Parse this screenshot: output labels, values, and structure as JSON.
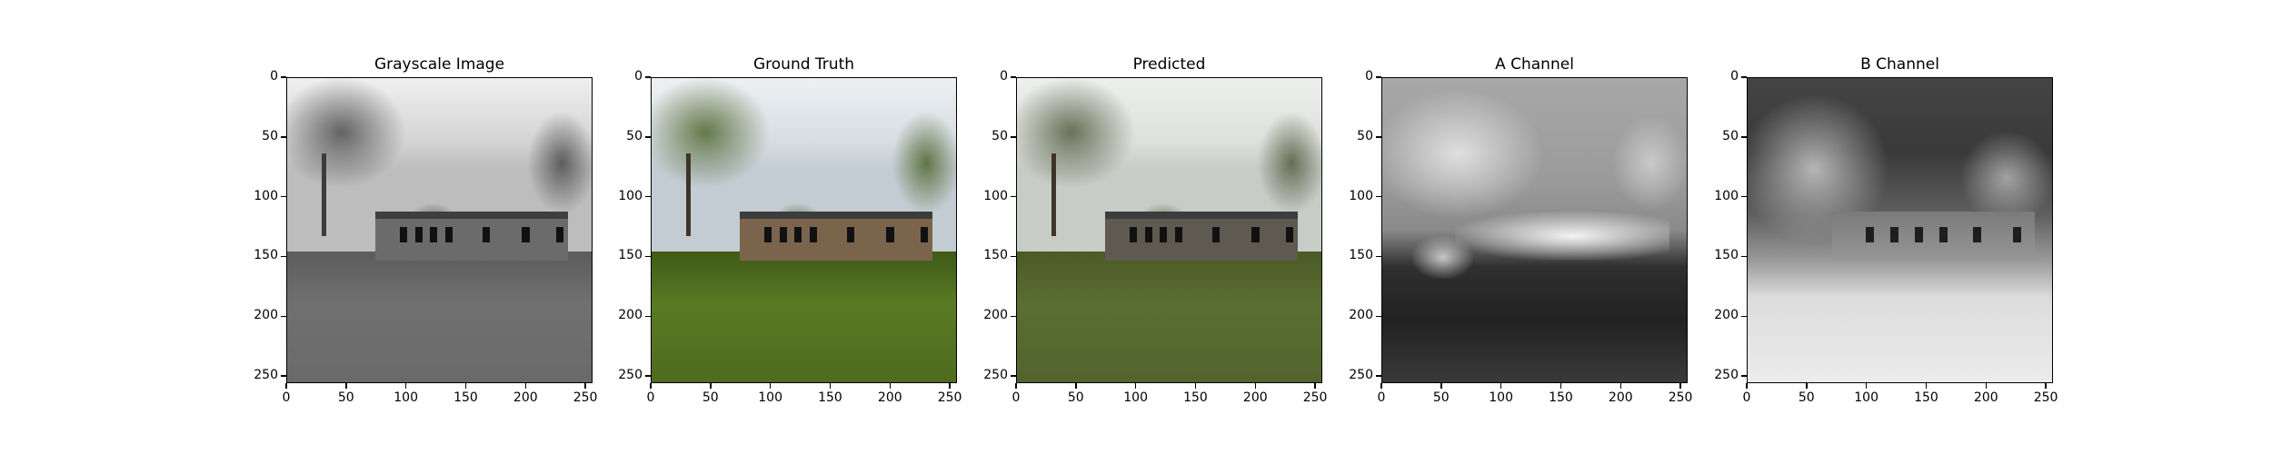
{
  "figure": {
    "panels": [
      {
        "title": "Grayscale Image",
        "kind": "gray"
      },
      {
        "title": "Ground Truth",
        "kind": "truth"
      },
      {
        "title": "Predicted",
        "kind": "pred"
      },
      {
        "title": "A Channel",
        "kind": "achan"
      },
      {
        "title": "B Channel",
        "kind": "bchan"
      }
    ],
    "x_ticks": [
      "0",
      "50",
      "100",
      "150",
      "200",
      "250"
    ],
    "y_ticks": [
      "0",
      "50",
      "100",
      "150",
      "200",
      "250"
    ],
    "x_tick_values": [
      0,
      50,
      100,
      150,
      200,
      250
    ],
    "y_tick_values": [
      0,
      50,
      100,
      150,
      200,
      250
    ],
    "axis_range": [
      0,
      256
    ],
    "colors": {
      "sky_gray": "#d7d7d7",
      "grass_gray": "#6f6f6f",
      "sky_color": "#dfe3e6",
      "grass_green": "#4f6b22",
      "grass_green_pred": "#55662e",
      "wall_truth": "#7a654c",
      "wall_pred": "#5e5a52"
    }
  }
}
